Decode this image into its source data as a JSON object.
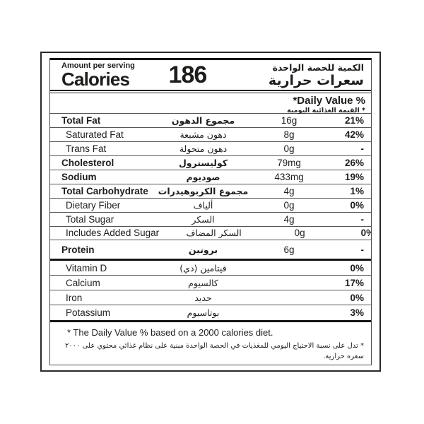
{
  "label": {
    "header": {
      "amount_per_serving_en": "Amount per serving",
      "calories_en": "Calories",
      "calories_value": "186",
      "amount_per_serving_ar": "الكمية للحصة الواحدة",
      "calories_ar": "سعرات حرارية"
    },
    "daily_value": {
      "en": "*Daily Value %",
      "ar": "* القيمة الغذائية اليومية"
    },
    "rows": [
      {
        "en": "Total Fat",
        "ar": "مجموع الدهون",
        "value": "16g",
        "percent": "21%"
      },
      {
        "en": "Saturated Fat",
        "ar": "دهون مشبعة",
        "value": "8g",
        "percent": "42%"
      },
      {
        "en": "Trans Fat",
        "ar": "دهون متحولة",
        "value": "0g",
        "percent": "-"
      },
      {
        "en": "Cholesterol",
        "ar": "كوليسترول",
        "value": "79mg",
        "percent": "26%"
      },
      {
        "en": "Sodium",
        "ar": "صوديوم",
        "value": "433mg",
        "percent": "19%"
      },
      {
        "en": "Total Carbohydrate",
        "ar": "مجموع الكربوهيدرات",
        "value": "4g",
        "percent": "1%"
      },
      {
        "en": "Dietary Fiber",
        "ar": "ألياف",
        "value": "0g",
        "percent": "0%"
      },
      {
        "en": "Total Sugar",
        "ar": "السكر",
        "value": "4g",
        "percent": "-"
      },
      {
        "en": "Includes Added Sugar",
        "ar": "السكر المضاف",
        "value": "0g",
        "percent": "0%"
      },
      {
        "en": "Protein",
        "ar": "بروتين",
        "value": "6g",
        "percent": "-"
      }
    ],
    "micronutrients": [
      {
        "en": "Vitamin D",
        "ar": "فيتامين (دي)",
        "percent": "0%"
      },
      {
        "en": "Calcium",
        "ar": "كالسيوم",
        "percent": "17%"
      },
      {
        "en": "Iron",
        "ar": "حديد",
        "percent": "0%"
      },
      {
        "en": "Potassium",
        "ar": "بوتاسيوم",
        "percent": "3%"
      }
    ],
    "footnotes": {
      "en": "* The Daily Value % based on a 2000 calories diet.",
      "ar": "* تدل على نسبة الاحتياج اليومي للمغذيات في الحصة الواحدة مبنية على نظام غذائي محتوي على ٢٠٠٠ سعره حرارية."
    },
    "colors": {
      "text": "#1d1d1b",
      "separator": "#555555",
      "thick_rule": "#141414",
      "background": "#ffffff"
    }
  }
}
